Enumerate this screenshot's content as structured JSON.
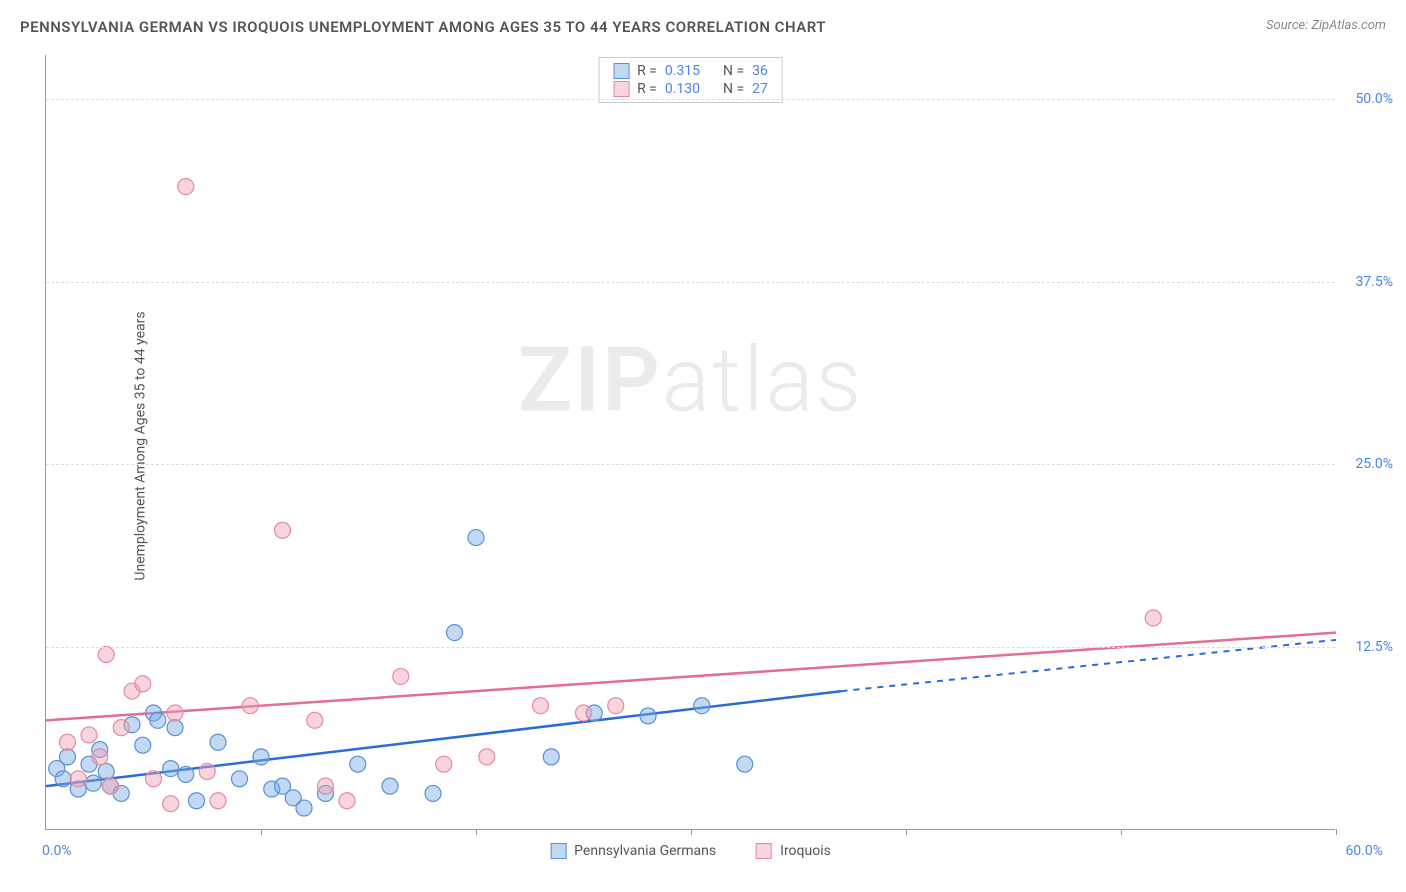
{
  "chart": {
    "title": "PENNSYLVANIA GERMAN VS IROQUOIS UNEMPLOYMENT AMONG AGES 35 TO 44 YEARS CORRELATION CHART",
    "source": "Source: ZipAtlas.com",
    "watermark_bold": "ZIP",
    "watermark_light": "atlas",
    "type": "scatter",
    "y_label": "Unemployment Among Ages 35 to 44 years",
    "x_min": 0,
    "x_max": 60,
    "y_min": 0,
    "y_max": 53,
    "x_tick_step": 10,
    "y_ticks": [
      12.5,
      25.0,
      37.5,
      50.0
    ],
    "y_tick_labels": [
      "12.5%",
      "25.0%",
      "37.5%",
      "50.0%"
    ],
    "x_min_label": "0.0%",
    "x_max_label": "60.0%",
    "grid_color": "#dddddd",
    "axis_color": "#999999",
    "background_color": "#ffffff",
    "marker_radius": 8,
    "marker_stroke_width": 1.2,
    "line_width": 2.5,
    "font_size_title": 15,
    "font_size_labels": 14,
    "series": [
      {
        "name": "Pennsylvania Germans",
        "label": "Pennsylvania Germans",
        "color_fill": "rgba(120,170,230,0.45)",
        "color_stroke": "#5b8fd6",
        "line_color": "#2b6cd4",
        "R_label": "R = ",
        "R": "0.315",
        "N_label": "N = ",
        "N": "36",
        "trend": {
          "x1": 0,
          "y1": 3.0,
          "x_solid_end": 37,
          "y_solid_end": 9.5,
          "x2": 60,
          "y2": 13.0,
          "dashed_after_solid": true
        },
        "points": [
          [
            0.5,
            4.2
          ],
          [
            0.8,
            3.5
          ],
          [
            1.0,
            5.0
          ],
          [
            1.5,
            2.8
          ],
          [
            2.0,
            4.5
          ],
          [
            2.2,
            3.2
          ],
          [
            2.5,
            5.5
          ],
          [
            2.8,
            4.0
          ],
          [
            3.0,
            3.0
          ],
          [
            3.5,
            2.5
          ],
          [
            4.0,
            7.2
          ],
          [
            4.5,
            5.8
          ],
          [
            5.0,
            8.0
          ],
          [
            5.2,
            7.5
          ],
          [
            5.8,
            4.2
          ],
          [
            6.0,
            7.0
          ],
          [
            6.5,
            3.8
          ],
          [
            7.0,
            2.0
          ],
          [
            8.0,
            6.0
          ],
          [
            9.0,
            3.5
          ],
          [
            10.0,
            5.0
          ],
          [
            10.5,
            2.8
          ],
          [
            11.0,
            3.0
          ],
          [
            11.5,
            2.2
          ],
          [
            12.0,
            1.5
          ],
          [
            13.0,
            2.5
          ],
          [
            14.5,
            4.5
          ],
          [
            16.0,
            3.0
          ],
          [
            18.0,
            2.5
          ],
          [
            19.0,
            13.5
          ],
          [
            20.0,
            20.0
          ],
          [
            23.5,
            5.0
          ],
          [
            25.5,
            8.0
          ],
          [
            28.0,
            7.8
          ],
          [
            30.5,
            8.5
          ],
          [
            32.5,
            4.5
          ]
        ]
      },
      {
        "name": "Iroquois",
        "label": "Iroquois",
        "color_fill": "rgba(240,160,180,0.45)",
        "color_stroke": "#e48aa5",
        "line_color": "#e06f91",
        "R_label": "R = ",
        "R": "0.130",
        "N_label": "N = ",
        "N": "27",
        "trend": {
          "x1": 0,
          "y1": 7.5,
          "x_solid_end": 60,
          "y_solid_end": 13.5,
          "x2": 60,
          "y2": 13.5,
          "dashed_after_solid": false
        },
        "points": [
          [
            1.0,
            6.0
          ],
          [
            1.5,
            3.5
          ],
          [
            2.0,
            6.5
          ],
          [
            2.5,
            5.0
          ],
          [
            2.8,
            12.0
          ],
          [
            3.0,
            3.0
          ],
          [
            3.5,
            7.0
          ],
          [
            4.0,
            9.5
          ],
          [
            4.5,
            10.0
          ],
          [
            5.0,
            3.5
          ],
          [
            5.8,
            1.8
          ],
          [
            6.0,
            8.0
          ],
          [
            6.5,
            44.0
          ],
          [
            7.5,
            4.0
          ],
          [
            8.0,
            2.0
          ],
          [
            9.5,
            8.5
          ],
          [
            11.0,
            20.5
          ],
          [
            12.5,
            7.5
          ],
          [
            13.0,
            3.0
          ],
          [
            14.0,
            2.0
          ],
          [
            16.5,
            10.5
          ],
          [
            18.5,
            4.5
          ],
          [
            20.5,
            5.0
          ],
          [
            23.0,
            8.5
          ],
          [
            25.0,
            8.0
          ],
          [
            26.5,
            8.5
          ],
          [
            51.5,
            14.5
          ]
        ]
      }
    ]
  },
  "colors": {
    "tick_label": "#4a86e8",
    "text": "#555555"
  }
}
